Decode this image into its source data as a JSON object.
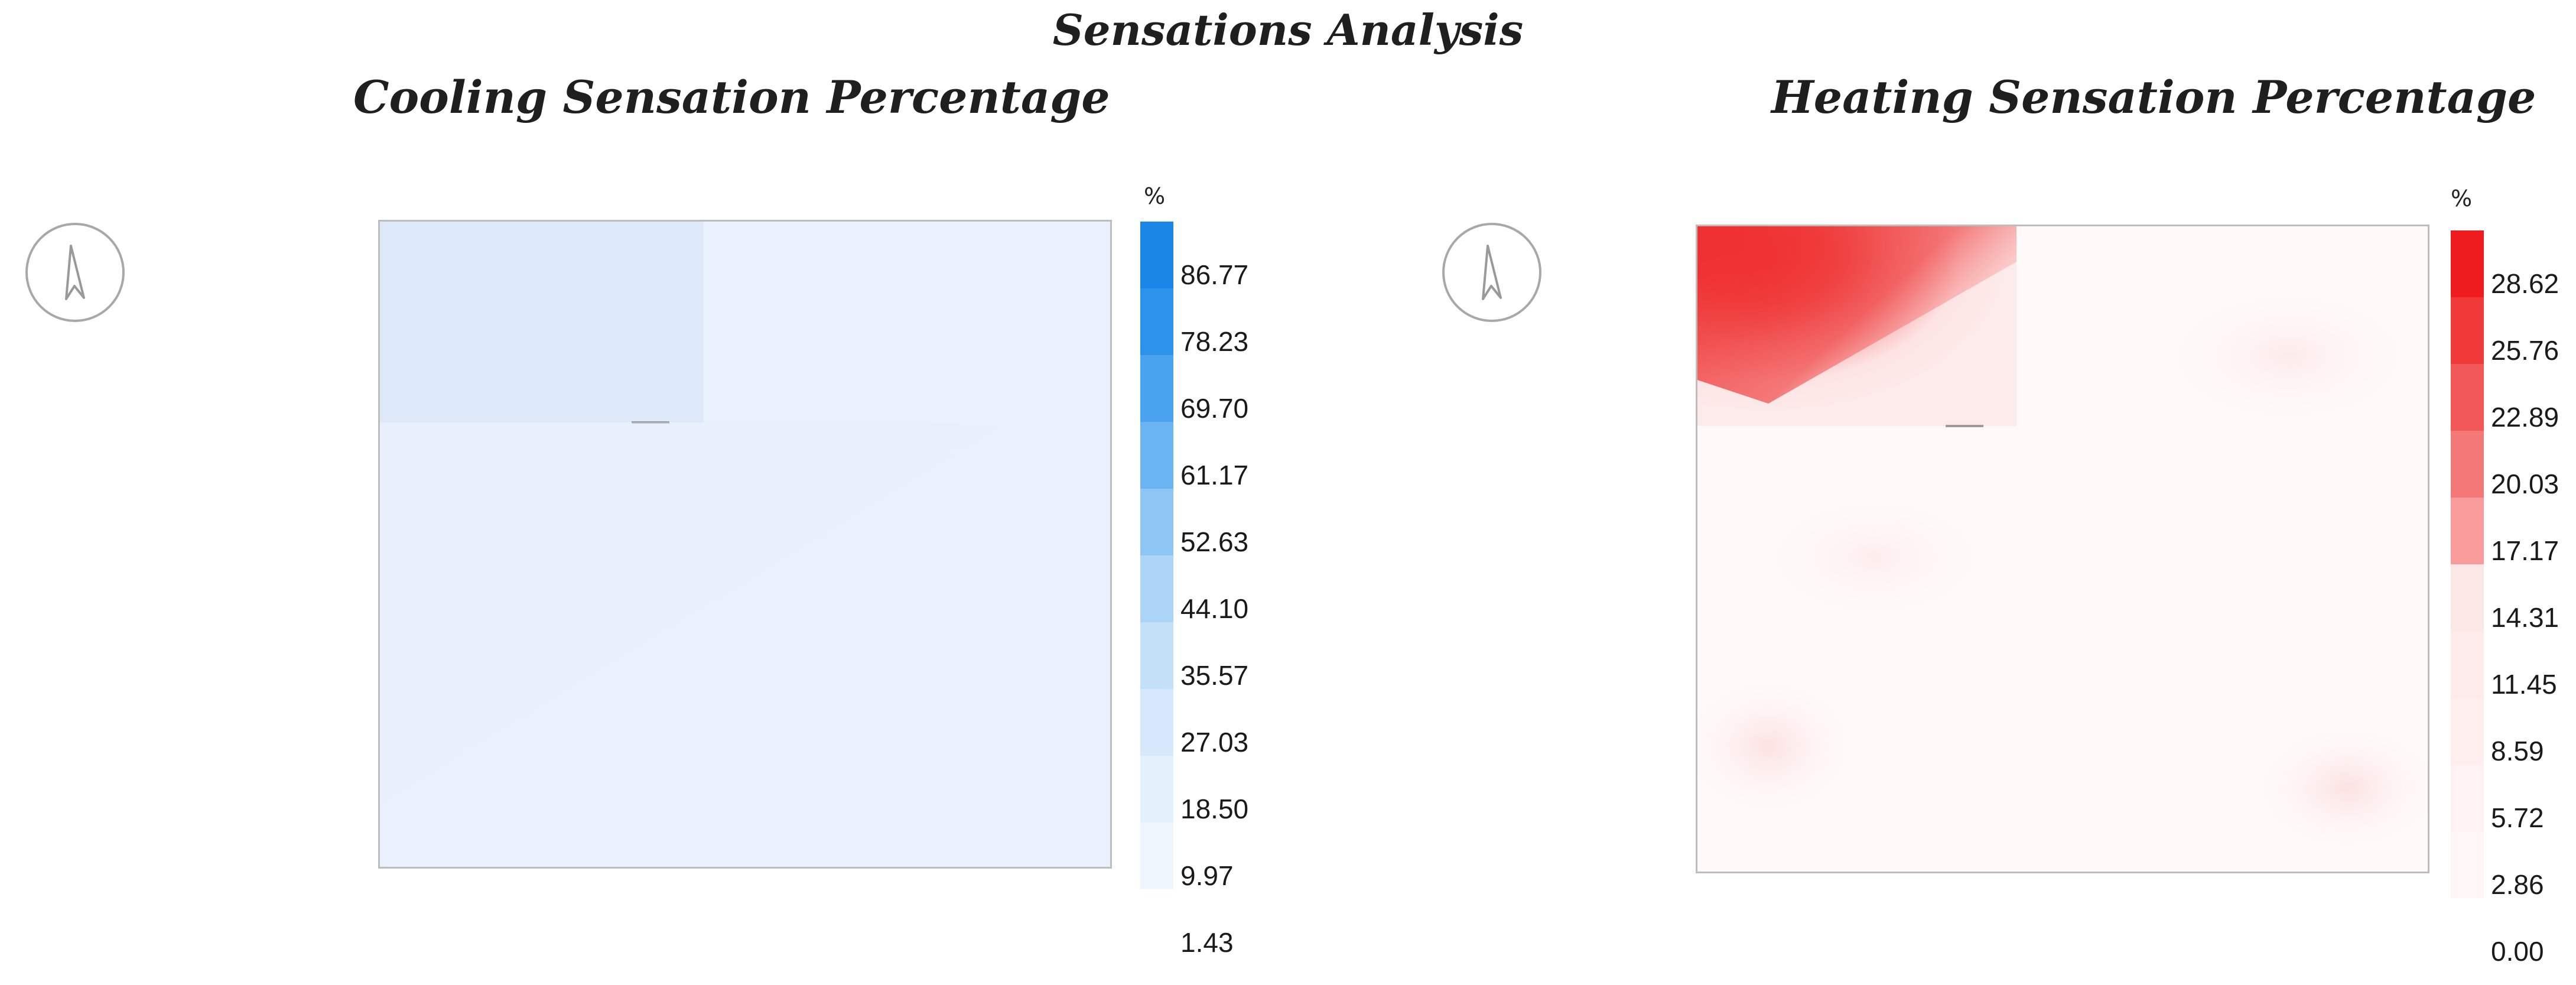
{
  "title": "Sensations Analysis",
  "chart_data": [
    {
      "type": "heatmap",
      "title": "Cooling Sensation Percentage",
      "legend_title": "%",
      "legend_placement": "right",
      "colorbar_labels": [
        "86.77",
        "78.23",
        "69.70",
        "61.17",
        "52.63",
        "44.10",
        "35.57",
        "27.03",
        "18.50",
        "9.97",
        "1.43"
      ],
      "colorbar_colors": [
        "#1a86e6",
        "#2d93ea",
        "#4aa3ee",
        "#6ab4f1",
        "#8dc6f5",
        "#abd4f7",
        "#c4e0f9",
        "#d6e8fb",
        "#e4f0fc",
        "#eff6fd"
      ],
      "regions": [
        {
          "area": "top-left room",
          "value": 20
        },
        {
          "area": "remaining floor",
          "value": 14
        }
      ],
      "accent_color": "#1a86e6"
    },
    {
      "type": "heatmap",
      "title": "Heating Sensation Percentage",
      "legend_title": "%",
      "legend_placement": "right",
      "colorbar_labels": [
        "28.62",
        "25.76",
        "22.89",
        "20.03",
        "17.17",
        "14.31",
        "11.45",
        "8.59",
        "5.72",
        "2.86",
        "0.00"
      ],
      "colorbar_colors": [
        "#ee1c1c",
        "#f03a3a",
        "#f25858",
        "#f47878",
        "#f79b9b",
        "#fde6e6",
        "#fdeaea",
        "#feeeee",
        "#fef2f2",
        "#fff6f6"
      ],
      "regions": [
        {
          "area": "top-left room, upper-left hotspot",
          "value": 28
        },
        {
          "area": "top-left room, remainder",
          "value": 8
        },
        {
          "area": "remaining floor",
          "value": 1
        }
      ],
      "accent_color": "#ee1c1c"
    }
  ],
  "icons": [
    "north-arrow-icon",
    "north-arrow-icon"
  ]
}
